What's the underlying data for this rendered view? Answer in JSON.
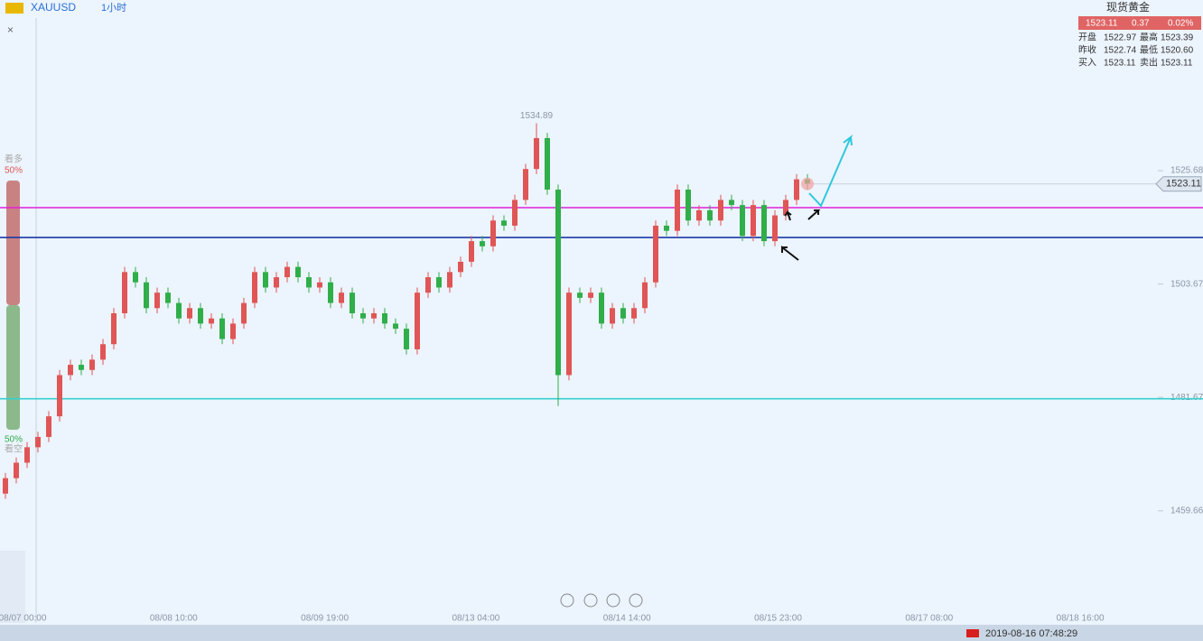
{
  "toolbar": {
    "symbol": "XAUUSD",
    "interval": "1小时"
  },
  "quote": {
    "name": "现货黄金",
    "last": "1523.11",
    "change": "0.37",
    "change_pct": "0.02%",
    "rows": [
      [
        "开盘",
        "1522.97",
        "最高",
        "1523.39"
      ],
      [
        "昨收",
        "1522.74",
        "最低",
        "1520.60"
      ],
      [
        "买入",
        "1523.11",
        "卖出",
        "1523.11"
      ]
    ]
  },
  "sentiment": {
    "top_label": "看多",
    "top_pct": "50%",
    "bottom_pct": "50%",
    "bottom_label": "看空"
  },
  "chart_data": {
    "type": "candlestick",
    "open": [
      1463,
      1466,
      1469,
      1472,
      1474,
      1478,
      1486,
      1488,
      1487,
      1489,
      1492,
      1498,
      1506,
      1504,
      1499,
      1502,
      1500,
      1497,
      1499,
      1496,
      1497,
      1493,
      1496,
      1500,
      1506,
      1503,
      1505,
      1507,
      1505,
      1503,
      1504,
      1500,
      1502,
      1498,
      1497,
      1498,
      1496,
      1495,
      1491,
      1502,
      1505,
      1503,
      1506,
      1508,
      1512,
      1511,
      1516,
      1515,
      1520,
      1526,
      1532,
      1522,
      1486,
      1502,
      1501,
      1502,
      1496,
      1499,
      1497,
      1499,
      1504,
      1515,
      1514,
      1522,
      1516,
      1518,
      1516,
      1520,
      1519,
      1513,
      1519,
      1512,
      1517,
      1520,
      1524
    ],
    "high": [
      1467,
      1470,
      1473,
      1475,
      1479,
      1487,
      1489,
      1489,
      1490,
      1493,
      1499,
      1507,
      1507,
      1505,
      1503,
      1503,
      1501,
      1500,
      1500,
      1498,
      1498,
      1497,
      1501,
      1507,
      1507,
      1506,
      1508,
      1508,
      1506,
      1505,
      1505,
      1503,
      1503,
      1499,
      1499,
      1499,
      1497,
      1496,
      1503,
      1506,
      1506,
      1507,
      1509,
      1513,
      1513,
      1517,
      1517,
      1521,
      1527,
      1534.89,
      1533,
      1523,
      1503,
      1503,
      1503,
      1503,
      1500,
      1500,
      1500,
      1505,
      1516,
      1516,
      1523,
      1523,
      1519,
      1519,
      1521,
      1521,
      1520,
      1520,
      1520,
      1518,
      1521,
      1525,
      1525
    ],
    "low": [
      1462,
      1465,
      1468,
      1471,
      1473,
      1477,
      1485,
      1486,
      1486,
      1488,
      1491,
      1497,
      1503,
      1498,
      1498,
      1499,
      1496,
      1496,
      1495,
      1495,
      1492,
      1492,
      1495,
      1499,
      1502,
      1502,
      1504,
      1504,
      1502,
      1502,
      1499,
      1499,
      1497,
      1496,
      1496,
      1495,
      1494,
      1490,
      1490,
      1501,
      1502,
      1502,
      1505,
      1507,
      1510,
      1510,
      1514,
      1514,
      1519,
      1525,
      1521,
      1480,
      1485,
      1500,
      1500,
      1495,
      1495,
      1496,
      1496,
      1498,
      1503,
      1513,
      1513,
      1515,
      1515,
      1515,
      1515,
      1518,
      1512,
      1512,
      1511,
      1511,
      1516,
      1519,
      1522
    ],
    "close": [
      1466,
      1469,
      1472,
      1474,
      1478,
      1486,
      1488,
      1487,
      1489,
      1492,
      1498,
      1506,
      1504,
      1499,
      1502,
      1500,
      1497,
      1499,
      1496,
      1497,
      1493,
      1496,
      1500,
      1506,
      1503,
      1505,
      1507,
      1505,
      1503,
      1504,
      1500,
      1502,
      1498,
      1497,
      1498,
      1496,
      1495,
      1491,
      1502,
      1505,
      1503,
      1506,
      1508,
      1512,
      1511,
      1516,
      1515,
      1520,
      1526,
      1532,
      1522,
      1486,
      1502,
      1501,
      1502,
      1496,
      1499,
      1497,
      1499,
      1504,
      1515,
      1514,
      1522,
      1516,
      1518,
      1516,
      1520,
      1519,
      1513,
      1519,
      1512,
      1517,
      1520,
      1524,
      1523.11
    ],
    "up_color": "#e05555",
    "down_color": "#2fae4a",
    "ylim": [
      1437.9,
      1558.8
    ],
    "yticks": [
      1459.66,
      1481.67,
      1503.67,
      1525.68
    ],
    "xtick_labels": [
      "08/07 00:00",
      "08/08 10:00",
      "08/09 19:00",
      "08/13 04:00",
      "08/14 14:00",
      "08/15 23:00",
      "08/17 08:00",
      "08/18 16:00"
    ],
    "hlines": [
      {
        "value": 1518.5,
        "color": "#e020d8"
      },
      {
        "value": 1512.7,
        "color": "#1a3aa8"
      },
      {
        "value": 1481.4,
        "color": "#36d0d0"
      }
    ]
  },
  "status_bar": {
    "datetime": "2019-08-16 07:48:29"
  }
}
